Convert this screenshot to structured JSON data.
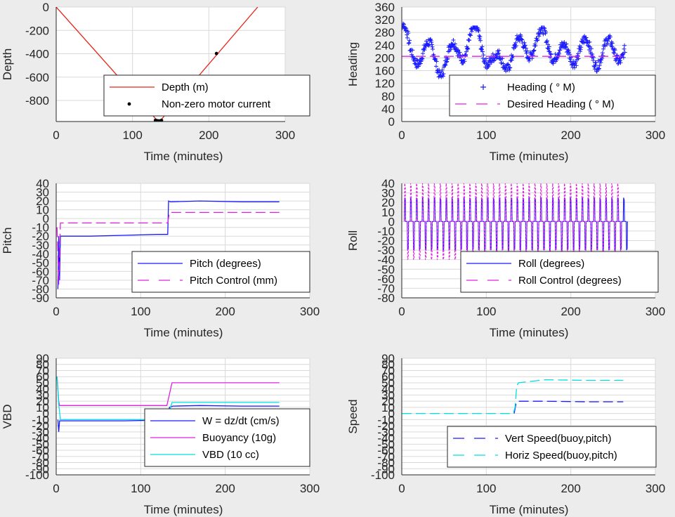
{
  "chart_data": [
    {
      "type": "line",
      "id": "depth",
      "xlabel": "Time (minutes)",
      "ylabel": "Depth",
      "xlim": [
        0,
        300
      ],
      "ylim": [
        -980,
        0
      ],
      "xticks": [
        0,
        100,
        200,
        300
      ],
      "yticks": [
        0,
        -200,
        -400,
        -600,
        -800
      ],
      "grid": true,
      "legend": {
        "placement": "bottom-right",
        "entries": [
          "Depth (m)",
          "Non-zero motor current"
        ]
      },
      "series": [
        {
          "name": "Depth (m)",
          "style": "solid",
          "color": "#e8241a",
          "x": [
            0,
            133,
            136,
            264
          ],
          "y": [
            0,
            -975,
            -975,
            0
          ]
        },
        {
          "name": "Non-zero motor current",
          "style": "dots",
          "color": "#000000",
          "x": [
            130,
            132,
            134,
            136,
            138,
            210
          ],
          "y": [
            -970,
            -973,
            -975,
            -975,
            -970,
            -398
          ]
        }
      ]
    },
    {
      "type": "scatter",
      "id": "heading",
      "xlabel": "Time (minutes)",
      "ylabel": "Heading",
      "xlim": [
        0,
        300
      ],
      "ylim": [
        0,
        360
      ],
      "xticks": [
        0,
        100,
        200,
        300
      ],
      "yticks": [
        0,
        40,
        80,
        120,
        160,
        200,
        240,
        280,
        320,
        360
      ],
      "yticklabels": [
        "0",
        "40",
        "80",
        "120",
        "160",
        "200",
        "240",
        "280",
        "320",
        "360"
      ],
      "grid": true,
      "legend": {
        "placement": "bottom-right",
        "entries": [
          "Heading (   ° M)",
          "Desired Heading (    ° M)"
        ]
      },
      "series": [
        {
          "name": "Heading (   ° M)",
          "style": "plus",
          "color": "#1a1aff",
          "x": [
            0,
            2,
            10,
            25,
            45,
            70,
            90,
            110,
            130,
            150,
            170,
            190,
            210,
            230,
            250,
            264
          ],
          "y": [
            305,
            290,
            200,
            230,
            180,
            230,
            270,
            170,
            215,
            240,
            260,
            200,
            230,
            210,
            225,
            228
          ],
          "band": [
            155,
            265
          ]
        },
        {
          "name": "Desired Heading (    ° M)",
          "style": "dashed",
          "color": "#e020e0",
          "x": [
            0,
            264
          ],
          "y": [
            205,
            205
          ]
        }
      ]
    },
    {
      "type": "line",
      "id": "pitch",
      "xlabel": "Time (minutes)",
      "ylabel": "Pitch",
      "xlim": [
        0,
        300
      ],
      "ylim": [
        -90,
        40
      ],
      "xticks": [
        0,
        100,
        200,
        300
      ],
      "yticks": [
        40,
        30,
        20,
        10,
        0,
        -10,
        -20,
        -30,
        -40,
        -50,
        -60,
        -70,
        -80,
        -90
      ],
      "grid": true,
      "legend": {
        "placement": "bottom-right",
        "entries": [
          "Pitch (degrees)",
          "Pitch Control (mm)"
        ]
      },
      "series": [
        {
          "name": "Pitch (degrees)",
          "style": "solid",
          "color": "#1a1aff",
          "x": [
            2,
            3,
            4,
            5,
            6,
            40,
            80,
            120,
            132,
            133,
            135,
            170,
            220,
            264
          ],
          "y": [
            -80,
            -20,
            -70,
            -20,
            -20,
            -20,
            -19,
            -18,
            -18,
            20,
            19,
            20,
            19,
            19
          ]
        },
        {
          "name": "Pitch Control (mm)",
          "style": "dashed",
          "color": "#e020e0",
          "x": [
            1,
            3,
            5,
            12,
            132,
            134,
            264
          ],
          "y": [
            -10,
            -75,
            -5,
            -5,
            -5,
            7,
            7
          ]
        }
      ]
    },
    {
      "type": "line",
      "id": "roll",
      "xlabel": "Time (minutes)",
      "ylabel": "Roll",
      "xlim": [
        0,
        300
      ],
      "ylim": [
        -80,
        40
      ],
      "xticks": [
        0,
        100,
        200,
        300
      ],
      "yticks": [
        40,
        30,
        20,
        10,
        0,
        -10,
        -20,
        -30,
        -40,
        -50,
        -60,
        -70,
        -80
      ],
      "grid": true,
      "legend": {
        "placement": "bottom-right",
        "entries": [
          "Roll (degrees)",
          "Roll Control (degrees)"
        ]
      },
      "series": [
        {
          "name": "Roll (degrees)",
          "style": "solid",
          "color": "#1a1aff",
          "x": [
            3,
            264
          ],
          "y": [
            0,
            0
          ],
          "amplitude": [
            -30,
            25
          ]
        },
        {
          "name": "Roll Control (degrees)",
          "style": "dashed",
          "color": "#e020e0",
          "x": [
            3,
            255
          ],
          "y": [
            0,
            0
          ],
          "amplitude": [
            -40,
            40
          ]
        }
      ]
    },
    {
      "type": "line",
      "id": "vbd",
      "xlabel": "Time (minutes)",
      "ylabel": "VBD",
      "xlim": [
        0,
        300
      ],
      "ylim": [
        -100,
        90
      ],
      "xticks": [
        0,
        100,
        200,
        300
      ],
      "yticks": [
        90,
        80,
        70,
        60,
        50,
        40,
        30,
        20,
        10,
        0,
        -10,
        -20,
        -30,
        -40,
        -50,
        -60,
        -70,
        -80,
        -90,
        -100
      ],
      "grid": true,
      "legend": {
        "placement": "bottom-right",
        "entries": [
          "W = dz/dt (cm/s)",
          "Buoyancy (10g)",
          "VBD (10 cc)"
        ]
      },
      "series": [
        {
          "name": "W = dz/dt (cm/s)",
          "style": "solid",
          "color": "#1a1aff",
          "x": [
            2,
            3,
            4,
            5,
            40,
            80,
            120,
            132,
            134,
            138,
            170,
            220,
            264
          ],
          "y": [
            -10,
            -30,
            -12,
            -12,
            -12,
            -12,
            -11,
            -11,
            10,
            12,
            13,
            12,
            12
          ]
        },
        {
          "name": "Buoyancy (10g)",
          "style": "solid",
          "color": "#e020e0",
          "x": [
            1,
            3,
            4,
            131,
            137,
            264
          ],
          "y": [
            60,
            20,
            13,
            13,
            50,
            50
          ]
        },
        {
          "name": "VBD (10 cc)",
          "style": "solid",
          "color": "#00e0e0",
          "x": [
            1,
            3,
            5,
            131,
            137,
            264
          ],
          "y": [
            60,
            15,
            -10,
            -10,
            18,
            18
          ]
        }
      ]
    },
    {
      "type": "line",
      "id": "speed",
      "xlabel": "Time (minutes)",
      "ylabel": "Speed",
      "xlim": [
        0,
        300
      ],
      "ylim": [
        -100,
        90
      ],
      "xticks": [
        0,
        100,
        200,
        300
      ],
      "yticks": [
        90,
        80,
        70,
        60,
        50,
        40,
        30,
        20,
        10,
        0,
        -10,
        -20,
        -30,
        -40,
        -50,
        -60,
        -70,
        -80,
        -90,
        -100
      ],
      "grid": true,
      "legend": {
        "placement": "bottom-right",
        "entries": [
          "Vert Speed(buoy,pitch)",
          "Horiz Speed(buoy,pitch)"
        ]
      },
      "series": [
        {
          "name": "Vert Speed(buoy,pitch)",
          "style": "dashed",
          "color": "#1a1aff",
          "x": [
            133,
            135,
            137,
            170,
            220,
            262
          ],
          "y": [
            0,
            15,
            20,
            20,
            19,
            19
          ]
        },
        {
          "name": "Horiz Speed(buoy,pitch)",
          "style": "dashed",
          "color": "#00e0e0",
          "x": [
            0,
            132,
            134,
            136,
            138,
            170,
            220,
            262
          ],
          "y": [
            0,
            0,
            10,
            45,
            50,
            55,
            54,
            54
          ]
        }
      ]
    }
  ]
}
